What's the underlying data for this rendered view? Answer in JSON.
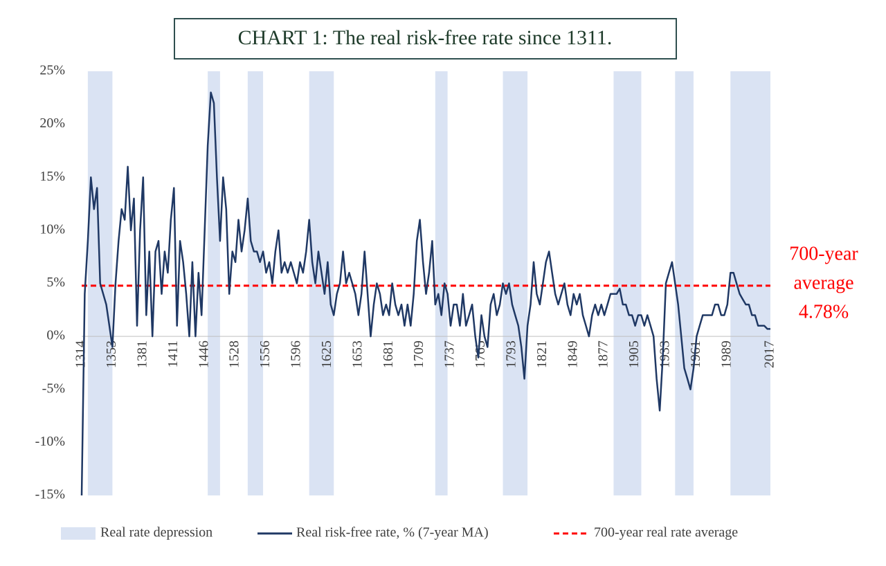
{
  "chart_data": {
    "type": "line",
    "title": "CHART 1: The real risk-free rate since 1311.",
    "categories": [
      "1314",
      null,
      null,
      null,
      null,
      null,
      null,
      null,
      null,
      null,
      "1353",
      null,
      null,
      null,
      null,
      null,
      null,
      null,
      null,
      null,
      "1381",
      null,
      null,
      null,
      null,
      null,
      null,
      null,
      null,
      null,
      "1411",
      null,
      null,
      null,
      null,
      null,
      null,
      null,
      null,
      null,
      "1446",
      null,
      null,
      null,
      null,
      null,
      null,
      null,
      null,
      null,
      "1528",
      null,
      null,
      null,
      null,
      null,
      null,
      null,
      null,
      null,
      "1556",
      null,
      null,
      null,
      null,
      null,
      null,
      null,
      null,
      null,
      "1596",
      null,
      null,
      null,
      null,
      null,
      null,
      null,
      null,
      null,
      "1625",
      null,
      null,
      null,
      null,
      null,
      null,
      null,
      null,
      null,
      "1653",
      null,
      null,
      null,
      null,
      null,
      null,
      null,
      null,
      null,
      "1681",
      null,
      null,
      null,
      null,
      null,
      null,
      null,
      null,
      null,
      "1709",
      null,
      null,
      null,
      null,
      null,
      null,
      null,
      null,
      null,
      "1737",
      null,
      null,
      null,
      null,
      null,
      null,
      null,
      null,
      null,
      "1765",
      null,
      null,
      null,
      null,
      null,
      null,
      null,
      null,
      null,
      "1793",
      null,
      null,
      null,
      null,
      null,
      null,
      null,
      null,
      null,
      "1821",
      null,
      null,
      null,
      null,
      null,
      null,
      null,
      null,
      null,
      "1849",
      null,
      null,
      null,
      null,
      null,
      null,
      null,
      null,
      null,
      "1877",
      null,
      null,
      null,
      null,
      null,
      null,
      null,
      null,
      null,
      "1905",
      null,
      null,
      null,
      null,
      null,
      null,
      null,
      null,
      null,
      "1933",
      null,
      null,
      null,
      null,
      null,
      null,
      null,
      null,
      null,
      "1961",
      null,
      null,
      null,
      null,
      null,
      null,
      null,
      null,
      null,
      "1989",
      null,
      null,
      null,
      null,
      null,
      null,
      null,
      null,
      null,
      null,
      null,
      null,
      null,
      "2017"
    ],
    "series": [
      {
        "name": "Real rate depression",
        "color": "#dae3f3",
        "ranges": [
          [
            2,
            10
          ],
          [
            41,
            45
          ],
          [
            54,
            59
          ],
          [
            74,
            82
          ],
          [
            115,
            119
          ],
          [
            137,
            145
          ],
          [
            173,
            182
          ],
          [
            193,
            199
          ],
          [
            211,
            224
          ]
        ]
      },
      {
        "name": "Real risk-free rate, % (7-year MA)",
        "color": "#1f3864",
        "values": [
          -15,
          4,
          9,
          15,
          12,
          14,
          5,
          4,
          3,
          1,
          -1,
          5,
          9,
          12,
          11,
          16,
          10,
          13,
          1,
          10,
          15,
          2,
          8,
          0,
          8,
          9,
          4,
          8,
          6,
          11,
          14,
          1,
          9,
          7,
          4,
          0,
          7,
          0,
          6,
          2,
          10,
          18,
          23,
          22,
          15,
          9,
          15,
          12,
          4,
          8,
          7,
          11,
          8,
          10,
          13,
          9,
          8,
          8,
          7,
          8,
          6,
          7,
          5,
          8,
          10,
          6,
          7,
          6,
          7,
          6,
          5,
          7,
          6,
          8,
          11,
          7,
          5,
          8,
          6,
          4,
          7,
          3,
          2,
          4,
          5,
          8,
          5,
          6,
          5,
          4,
          2,
          4,
          8,
          4,
          0,
          3,
          5,
          4,
          2,
          3,
          2,
          5,
          3,
          2,
          3,
          1,
          3,
          1,
          4,
          9,
          11,
          7,
          4,
          6,
          9,
          3,
          4,
          2,
          5,
          4,
          1,
          3,
          3,
          1,
          4,
          1,
          2,
          3,
          0,
          -2,
          2,
          0,
          -1,
          3,
          4,
          2,
          3,
          5,
          4,
          5,
          3,
          2,
          1,
          -1,
          -4,
          1,
          3,
          7,
          4,
          3,
          5,
          7,
          8,
          6,
          4,
          3,
          4,
          5,
          3,
          2,
          4,
          3,
          4,
          2,
          1,
          0,
          2,
          3,
          2,
          3,
          2,
          3,
          4,
          4,
          4,
          4.5,
          3,
          3,
          2,
          2,
          1,
          2,
          2,
          1,
          2,
          1,
          0,
          -4,
          -7,
          -2,
          5,
          6,
          7,
          5,
          3,
          0,
          -3,
          -4,
          -5,
          -3,
          0,
          1,
          2,
          2,
          2,
          2,
          3,
          3,
          2,
          2,
          3,
          6,
          6,
          5,
          4,
          3.5,
          3,
          3,
          2,
          2,
          1,
          1,
          1,
          0.7,
          0.7
        ]
      },
      {
        "name": "700-year real rate average",
        "color": "#ff0000",
        "value": 4.78,
        "value_label": "4.78%"
      }
    ],
    "annotation": [
      "700-year",
      "average"
    ],
    "ylim": [
      -15,
      25
    ],
    "yticks": [
      {
        "value": -15,
        "label": "-15%"
      },
      {
        "value": -10,
        "label": "-10%"
      },
      {
        "value": -5,
        "label": "-5%"
      },
      {
        "value": 0,
        "label": "0%"
      },
      {
        "value": 5,
        "label": "5%"
      },
      {
        "value": 10,
        "label": "10%"
      },
      {
        "value": 15,
        "label": "15%"
      },
      {
        "value": 20,
        "label": "20%"
      },
      {
        "value": 25,
        "label": "25%"
      }
    ],
    "grid": false
  }
}
